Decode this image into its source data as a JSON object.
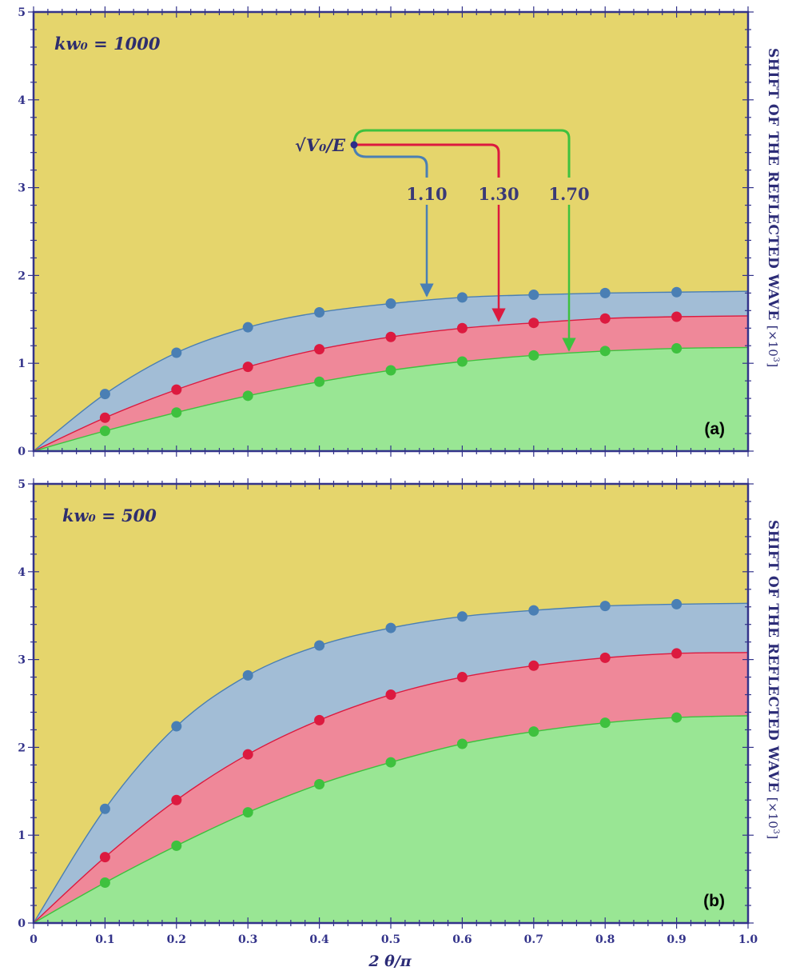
{
  "colors": {
    "background": "#e5d56c",
    "axis": "#33338a",
    "blue_line": "#4a7fb4",
    "blue_fill": "#a2bdd6",
    "red_line": "#dc1a3f",
    "red_fill": "#ef8899",
    "green_line": "#3ec13e",
    "green_fill": "#99e694",
    "annotation_dot": "#2c2c8a"
  },
  "ylabel": {
    "main": "SHIFT OF THE REFLECTED WAVE",
    "unit": "[×10",
    "unit_exp": "3",
    "unit_close": "]"
  },
  "xlabel": "2 θ/π",
  "annotation": {
    "label": "√V₀/E",
    "values": [
      "1.10",
      "1.30",
      "1.70"
    ]
  },
  "chart_data": [
    {
      "type": "area",
      "panel_tag": "(a)",
      "title": "kw₀ = 1000",
      "xlabel": "2 θ/π",
      "ylabel": "SHIFT OF THE REFLECTED WAVE [×10³]",
      "xlim": [
        0,
        1
      ],
      "ylim": [
        0,
        5
      ],
      "x_ticks": [
        "0",
        "0.1",
        "0.2",
        "0.3",
        "0.4",
        "0.5",
        "0.6",
        "0.7",
        "0.8",
        "0.9",
        "1.0"
      ],
      "y_ticks": [
        "0",
        "1",
        "2",
        "3",
        "4",
        "5"
      ],
      "legend": "none",
      "grid": false,
      "x": [
        0.1,
        0.2,
        0.3,
        0.4,
        0.5,
        0.6,
        0.7,
        0.8,
        0.9
      ],
      "series": [
        {
          "name": "1.10",
          "color": "blue",
          "values": [
            0.65,
            1.12,
            1.41,
            1.58,
            1.68,
            1.75,
            1.78,
            1.8,
            1.81
          ],
          "end": 1.82
        },
        {
          "name": "1.30",
          "color": "red",
          "values": [
            0.38,
            0.7,
            0.96,
            1.16,
            1.3,
            1.4,
            1.46,
            1.51,
            1.53
          ],
          "end": 1.54
        },
        {
          "name": "1.70",
          "color": "green",
          "values": [
            0.23,
            0.44,
            0.63,
            0.79,
            0.92,
            1.02,
            1.09,
            1.14,
            1.17
          ],
          "end": 1.18
        }
      ]
    },
    {
      "type": "area",
      "panel_tag": "(b)",
      "title": "kw₀ = 500",
      "xlabel": "2 θ/π",
      "ylabel": "SHIFT OF THE REFLECTED WAVE [×10³]",
      "xlim": [
        0,
        1
      ],
      "ylim": [
        0,
        5
      ],
      "x_ticks": [
        "0",
        "0.1",
        "0.2",
        "0.3",
        "0.4",
        "0.5",
        "0.6",
        "0.7",
        "0.8",
        "0.9",
        "1.0"
      ],
      "y_ticks": [
        "0",
        "1",
        "2",
        "3",
        "4",
        "5"
      ],
      "legend": "none",
      "grid": false,
      "x": [
        0.1,
        0.2,
        0.3,
        0.4,
        0.5,
        0.6,
        0.7,
        0.8,
        0.9
      ],
      "series": [
        {
          "name": "1.10",
          "color": "blue",
          "values": [
            1.3,
            2.24,
            2.82,
            3.16,
            3.36,
            3.49,
            3.56,
            3.61,
            3.63
          ],
          "end": 3.64
        },
        {
          "name": "1.30",
          "color": "red",
          "values": [
            0.75,
            1.4,
            1.92,
            2.31,
            2.6,
            2.8,
            2.93,
            3.02,
            3.07
          ],
          "end": 3.08
        },
        {
          "name": "1.70",
          "color": "green",
          "values": [
            0.46,
            0.88,
            1.26,
            1.58,
            1.83,
            2.04,
            2.18,
            2.28,
            2.34
          ],
          "end": 2.36
        }
      ]
    }
  ]
}
